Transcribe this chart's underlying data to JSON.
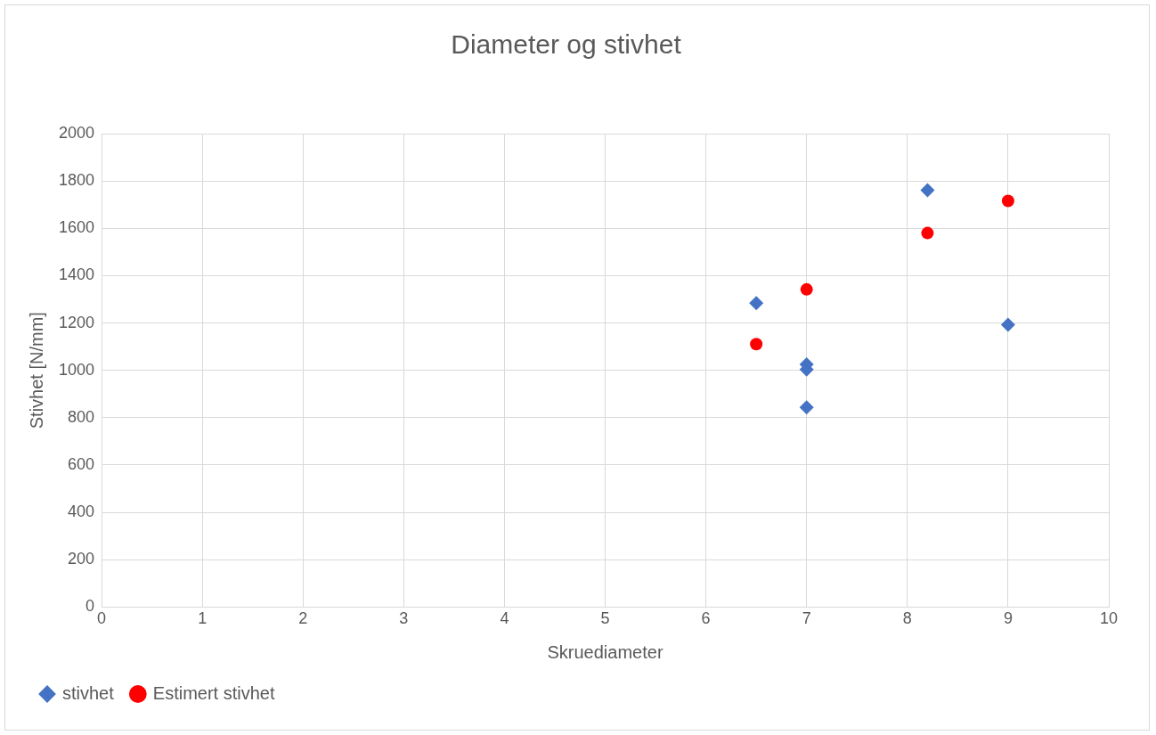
{
  "chart_data": {
    "type": "scatter",
    "title": "Diameter og stivhet",
    "xlabel": "Skruediameter",
    "ylabel": "Stivhet [N/mm]",
    "xlim": [
      0,
      10
    ],
    "xticks": [
      0,
      1,
      2,
      3,
      4,
      5,
      6,
      7,
      8,
      9,
      10
    ],
    "ylim": [
      0,
      2000
    ],
    "yticks": [
      0,
      200,
      400,
      600,
      800,
      1000,
      1200,
      1400,
      1600,
      1800,
      2000
    ],
    "grid": true,
    "legend": "bottom",
    "series": [
      {
        "name": "stivhet",
        "color": "#4472c4",
        "marker": "diamond",
        "x": [
          6.5,
          7,
          7,
          7,
          8.2,
          9
        ],
        "values": [
          1284,
          1025,
          1004,
          844,
          1761,
          1193
        ]
      },
      {
        "name": "Estimert stivhet",
        "color": "#ff0000",
        "marker": "circle",
        "x": [
          6.5,
          7,
          8.2,
          9
        ],
        "values": [
          1111,
          1342,
          1580,
          1716
        ]
      }
    ]
  }
}
